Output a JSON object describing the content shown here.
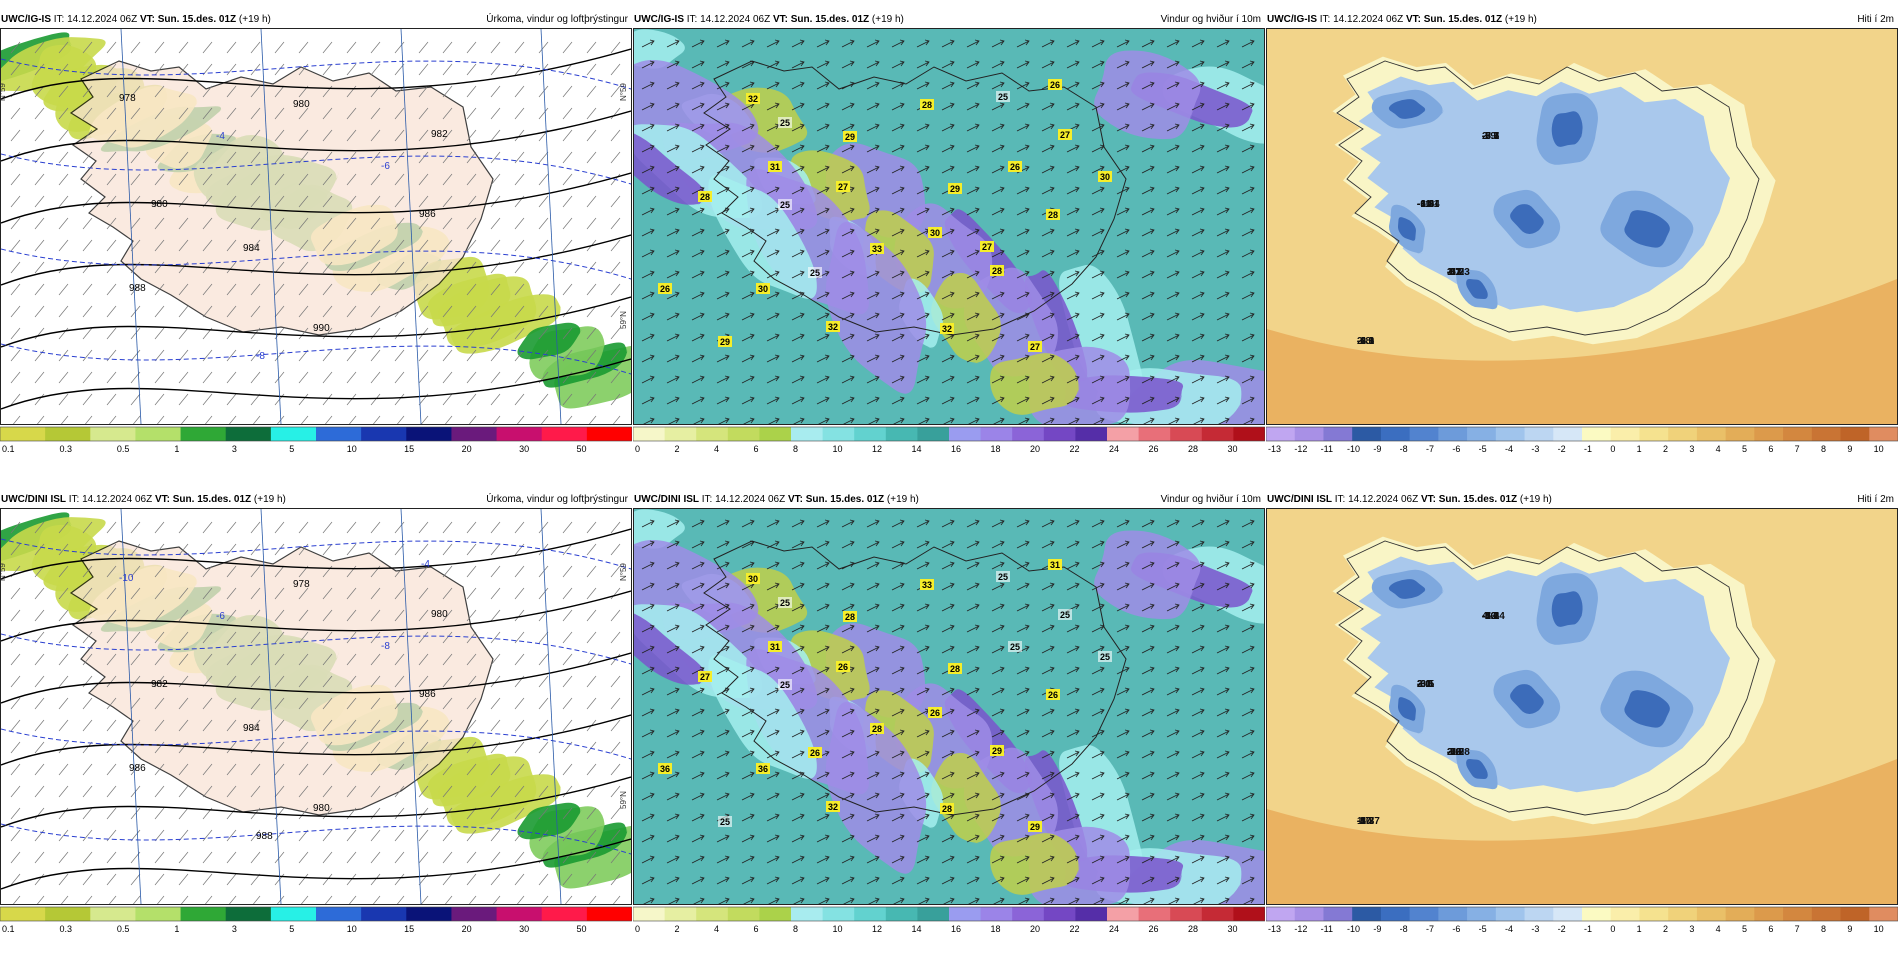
{
  "panels": [
    {
      "model": "UWC/IG-IS",
      "it_label": "IT:",
      "it": "14.12.2024 06Z",
      "vt_label": "VT:",
      "vt": "Sun. 15.des. 01Z",
      "lead": "(+19 h)",
      "title": "Úrkoma, vindur og loftþrýstingur",
      "kind": "precip",
      "contour_labels": [
        "978",
        "980",
        "982",
        "980",
        "984",
        "986",
        "988",
        "990",
        "-8",
        "-6",
        "-4"
      ],
      "edge_labels": [
        "N°59",
        "N°59",
        "59°N"
      ]
    },
    {
      "model": "UWC/IG-IS",
      "it_label": "IT:",
      "it": "14.12.2024 06Z",
      "vt_label": "VT:",
      "vt": "Sun. 15.des. 01Z",
      "lead": "(+19 h)",
      "title": "Vindur og hviður í 10m",
      "kind": "wind",
      "gust_labels": [
        "25",
        "27",
        "29",
        "25",
        "32",
        "31",
        "28",
        "28",
        "30",
        "30",
        "29",
        "32",
        "26",
        "27",
        "28",
        "26",
        "27",
        "29",
        "30",
        "33",
        "28",
        "32",
        "26",
        "25",
        "25",
        "27"
      ]
    },
    {
      "model": "UWC/IG-IS",
      "it_label": "IT:",
      "it": "14.12.2024 06Z",
      "vt_label": "VT:",
      "vt": "Sun. 15.des. 01Z",
      "lead": "(+19 h)",
      "title": "Hiti í 2m",
      "kind": "temp",
      "temp_labels": [
        "-7.1",
        "-6.4",
        "-6.0",
        "-8.1",
        "-3.5",
        "-1.3",
        "-5.2",
        "-4.6",
        "-5.3",
        "-3.9",
        "-3.7",
        "-6.9",
        "-8.6",
        "-11.1",
        "-12.3",
        "-0.3",
        "-3.7",
        "-10.4",
        "1.7",
        "-2.3",
        "2.9",
        "-6.8",
        "3.1",
        "2.8"
      ]
    },
    {
      "model": "UWC/DINI ISL",
      "it_label": "IT:",
      "it": "14.12.2024 06Z",
      "vt_label": "VT:",
      "vt": "Sun. 15.des. 01Z",
      "lead": "(+19 h)",
      "title": "Úrkoma, vindur og loftþrýstingur",
      "kind": "precip",
      "contour_labels": [
        "-10",
        "978",
        "980",
        "982",
        "984",
        "986",
        "986",
        "980",
        "988",
        "-8",
        "-6",
        "-4"
      ],
      "edge_labels": [
        "N°59",
        "N°59",
        "59°N"
      ]
    },
    {
      "model": "UWC/DINI ISL",
      "it_label": "IT:",
      "it": "14.12.2024 06Z",
      "vt_label": "VT:",
      "vt": "Sun. 15.des. 01Z",
      "lead": "(+19 h)",
      "title": "Vindur og hviður í 10m",
      "kind": "wind",
      "gust_labels": [
        "25",
        "25",
        "28",
        "26",
        "28",
        "31",
        "33",
        "27",
        "26",
        "36",
        "25",
        "30",
        "31",
        "26",
        "26",
        "36",
        "29",
        "28",
        "25",
        "28",
        "29",
        "32",
        "25",
        "25",
        "25"
      ]
    },
    {
      "model": "UWC/DINI ISL",
      "it_label": "IT:",
      "it": "14.12.2024 06Z",
      "vt_label": "VT:",
      "vt": "Sun. 15.des. 01Z",
      "lead": "(+19 h)",
      "title": "Hiti í 2m",
      "kind": "temp",
      "temp_labels": [
        "-7.1",
        "3.1",
        "-0.7",
        "-4.7",
        "-7.5",
        "-6.1",
        "3.2",
        "-5.3",
        "4.6",
        "-3.5",
        "-7.0",
        "-2.3",
        "-5.2",
        "-3.5",
        "-8.2",
        "-10.7",
        "-12.4",
        "2.0",
        "2.6",
        "-3.3",
        "-4.2",
        "3.1",
        "-10.8",
        "1.7",
        "-7.6",
        "2.0"
      ]
    }
  ],
  "colorbars": {
    "precip": {
      "colors": [
        "#d7d84a",
        "#b5c836",
        "#d6e98e",
        "#b4e06a",
        "#2fa836",
        "#0d6d3a",
        "#27f0e6",
        "#2d6bd8",
        "#1937b0",
        "#0a1378",
        "#6a1a7c",
        "#c80f6e",
        "#ff1a4a",
        "#ff0000"
      ],
      "labels": [
        "0.1",
        "0.3",
        "0.5",
        "1",
        "3",
        "5",
        "10",
        "15",
        "20",
        "30",
        "50"
      ]
    },
    "wind": {
      "colors": [
        "#f6f7c9",
        "#e6efa2",
        "#d5e57c",
        "#c2db5e",
        "#abd24a",
        "#a8ecef",
        "#84e2e2",
        "#62d2cf",
        "#47b8b2",
        "#38a09b",
        "#9a9cf0",
        "#9b84e8",
        "#8b64d8",
        "#7447c4",
        "#552ea8",
        "#f4a0a6",
        "#e86f79",
        "#d84a55",
        "#c52a35",
        "#b0101a"
      ],
      "labels": [
        "0",
        "2",
        "4",
        "6",
        "8",
        "10",
        "12",
        "14",
        "16",
        "18",
        "20",
        "22",
        "24",
        "26",
        "28",
        "30"
      ]
    },
    "temp": {
      "colors": [
        "#c0a6f1",
        "#a890e6",
        "#8479d4",
        "#2c5aa4",
        "#3b6ec0",
        "#5283cf",
        "#6d9bda",
        "#86b0e4",
        "#a0c4ec",
        "#bcd6f2",
        "#d6e7f7",
        "#fbfac2",
        "#faeeaa",
        "#f5e28f",
        "#f0d27a",
        "#eac068",
        "#e3ad58",
        "#dc9a4b",
        "#d3873f",
        "#c97434",
        "#bf6428",
        "#e08c60"
      ],
      "labels": [
        "-13",
        "-12",
        "-11",
        "-10",
        "-9",
        "-8",
        "-7",
        "-6",
        "-5",
        "-4",
        "-3",
        "-2",
        "-1",
        "0",
        "1",
        "2",
        "3",
        "4",
        "5",
        "6",
        "7",
        "8",
        "9",
        "10"
      ]
    }
  },
  "palette": {
    "precip": {
      "sea": "#ffffff",
      "land": "#f9e3d6",
      "light": "#f7f48e",
      "mid": "#c8d94a",
      "green": "#7fcc5d",
      "dark": "#1a9a31"
    },
    "wind": {
      "base": "#59b9b6",
      "light": "#a5efef",
      "yellow": "#c0cf4a",
      "purple": "#9f8ce6",
      "deep": "#7a53cc"
    },
    "temp": {
      "sea": "#f2d48a",
      "sea2": "#e7a956",
      "coast": "#f9f5c6",
      "light": "#a9c8ec",
      "mid": "#7ea8de",
      "dark": "#3c6cba"
    }
  }
}
